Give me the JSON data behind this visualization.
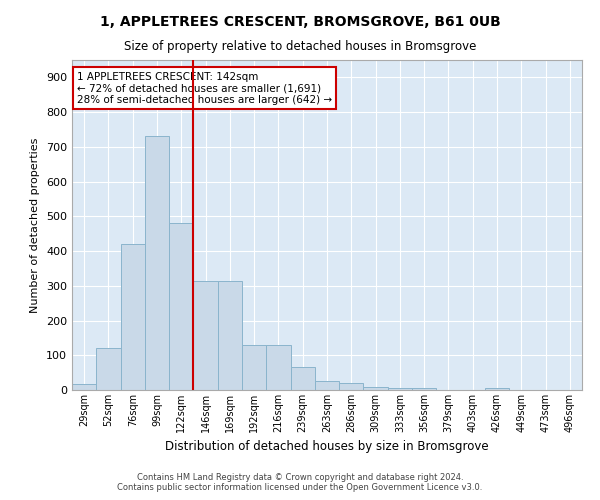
{
  "title1": "1, APPLETREES CRESCENT, BROMSGROVE, B61 0UB",
  "title2": "Size of property relative to detached houses in Bromsgrove",
  "xlabel": "Distribution of detached houses by size in Bromsgrove",
  "ylabel": "Number of detached properties",
  "bar_values": [
    18,
    120,
    420,
    730,
    480,
    315,
    315,
    130,
    130,
    65,
    25,
    20,
    10,
    5,
    5,
    0,
    0,
    5,
    0,
    0,
    0
  ],
  "categories": [
    "29sqm",
    "52sqm",
    "76sqm",
    "99sqm",
    "122sqm",
    "146sqm",
    "169sqm",
    "192sqm",
    "216sqm",
    "239sqm",
    "263sqm",
    "286sqm",
    "309sqm",
    "333sqm",
    "356sqm",
    "379sqm",
    "403sqm",
    "426sqm",
    "449sqm",
    "473sqm",
    "496sqm"
  ],
  "bar_color": "#c9d9e8",
  "bar_edge_color": "#8ab4cc",
  "vline_x": 4.5,
  "vline_color": "#cc0000",
  "annotation_text": "1 APPLETREES CRESCENT: 142sqm\n← 72% of detached houses are smaller (1,691)\n28% of semi-detached houses are larger (642) →",
  "annotation_box_color": "white",
  "annotation_box_edge": "#cc0000",
  "ylim": [
    0,
    950
  ],
  "yticks": [
    0,
    100,
    200,
    300,
    400,
    500,
    600,
    700,
    800,
    900
  ],
  "footer1": "Contains HM Land Registry data © Crown copyright and database right 2024.",
  "footer2": "Contains public sector information licensed under the Open Government Licence v3.0.",
  "bg_color": "#ffffff",
  "plot_bg_color": "#dce9f5",
  "grid_color": "#ffffff",
  "spine_color": "#aaaaaa"
}
